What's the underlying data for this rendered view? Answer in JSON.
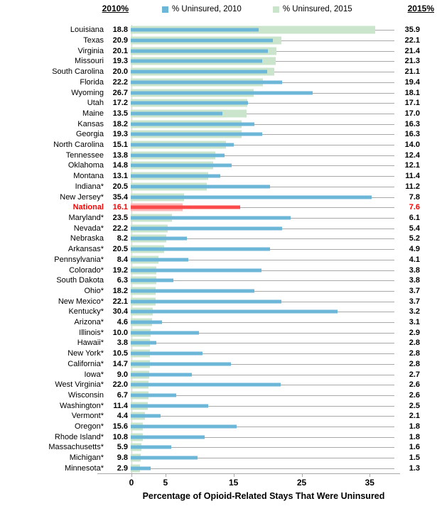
{
  "chart_data": {
    "type": "bar",
    "orientation": "horizontal",
    "left_header": "2010%",
    "right_header": "2015%",
    "xlabel": "Percentage of Opioid-Related Stays That Were Uninsured",
    "x_ticks": [
      "0",
      "5",
      "15",
      "25",
      "35"
    ],
    "xlim": [
      0,
      38.7
    ],
    "grid": "leader-lines-per-row",
    "legend_position": "top-center",
    "legend": [
      {
        "label": "% Uninsured, 2010",
        "color": "#6CB6D8"
      },
      {
        "label": "% Uninsured, 2015",
        "color": "#CBE5CD"
      }
    ],
    "national_colors": {
      "bar_2010": "#FB4A4A",
      "bar_2015": "#FBB9B9",
      "text": "#FF0000"
    },
    "rows": [
      {
        "state": "Louisiana",
        "v2010": "18.8",
        "v2015": "35.9",
        "highlight": false
      },
      {
        "state": "Texas",
        "v2010": "20.9",
        "v2015": "22.1",
        "highlight": false
      },
      {
        "state": "Virginia",
        "v2010": "20.1",
        "v2015": "21.4",
        "highlight": false
      },
      {
        "state": "Missouri",
        "v2010": "19.3",
        "v2015": "21.3",
        "highlight": false
      },
      {
        "state": "South Carolina",
        "v2010": "20.0",
        "v2015": "21.1",
        "highlight": false
      },
      {
        "state": "Florida",
        "v2010": "22.2",
        "v2015": "19.4",
        "highlight": false
      },
      {
        "state": "Wyoming",
        "v2010": "26.7",
        "v2015": "18.1",
        "highlight": false
      },
      {
        "state": "Utah",
        "v2010": "17.2",
        "v2015": "17.1",
        "highlight": false
      },
      {
        "state": "Maine",
        "v2010": "13.5",
        "v2015": "17.0",
        "highlight": false
      },
      {
        "state": "Kansas",
        "v2010": "18.2",
        "v2015": "16.3",
        "highlight": false
      },
      {
        "state": "Georgia",
        "v2010": "19.3",
        "v2015": "16.3",
        "highlight": false
      },
      {
        "state": "North Carolina",
        "v2010": "15.1",
        "v2015": "14.0",
        "highlight": false
      },
      {
        "state": "Tennessee",
        "v2010": "13.8",
        "v2015": "12.4",
        "highlight": false
      },
      {
        "state": "Oklahoma",
        "v2010": "14.8",
        "v2015": "12.1",
        "highlight": false
      },
      {
        "state": "Montana",
        "v2010": "13.1",
        "v2015": "11.4",
        "highlight": false
      },
      {
        "state": "Indiana*",
        "v2010": "20.5",
        "v2015": "11.2",
        "highlight": false
      },
      {
        "state": "New Jersey*",
        "v2010": "35.4",
        "v2015": "7.8",
        "highlight": false
      },
      {
        "state": "National",
        "v2010": "16.1",
        "v2015": "7.6",
        "highlight": true
      },
      {
        "state": "Maryland*",
        "v2010": "23.5",
        "v2015": "6.1",
        "highlight": false
      },
      {
        "state": "Nevada*",
        "v2010": "22.2",
        "v2015": "5.4",
        "highlight": false
      },
      {
        "state": "Nebraska",
        "v2010": "8.2",
        "v2015": "5.2",
        "highlight": false
      },
      {
        "state": "Arkansas*",
        "v2010": "20.5",
        "v2015": "4.9",
        "highlight": false
      },
      {
        "state": "Pennsylvania*",
        "v2010": "8.4",
        "v2015": "4.1",
        "highlight": false
      },
      {
        "state": "Colorado*",
        "v2010": "19.2",
        "v2015": "3.8",
        "highlight": false
      },
      {
        "state": "South Dakota",
        "v2010": "6.3",
        "v2015": "3.8",
        "highlight": false
      },
      {
        "state": "Ohio*",
        "v2010": "18.2",
        "v2015": "3.7",
        "highlight": false
      },
      {
        "state": "New Mexico*",
        "v2010": "22.1",
        "v2015": "3.7",
        "highlight": false
      },
      {
        "state": "Kentucky*",
        "v2010": "30.4",
        "v2015": "3.2",
        "highlight": false
      },
      {
        "state": "Arizona*",
        "v2010": "4.6",
        "v2015": "3.1",
        "highlight": false
      },
      {
        "state": "Illinois*",
        "v2010": "10.0",
        "v2015": "2.9",
        "highlight": false
      },
      {
        "state": "Hawaii*",
        "v2010": "3.8",
        "v2015": "2.8",
        "highlight": false
      },
      {
        "state": "New York*",
        "v2010": "10.5",
        "v2015": "2.8",
        "highlight": false
      },
      {
        "state": "California*",
        "v2010": "14.7",
        "v2015": "2.8",
        "highlight": false
      },
      {
        "state": "Iowa*",
        "v2010": "9.0",
        "v2015": "2.7",
        "highlight": false
      },
      {
        "state": "West Virginia*",
        "v2010": "22.0",
        "v2015": "2.6",
        "highlight": false
      },
      {
        "state": "Wisconsin",
        "v2010": "6.7",
        "v2015": "2.6",
        "highlight": false
      },
      {
        "state": "Washington*",
        "v2010": "11.4",
        "v2015": "2.5",
        "highlight": false
      },
      {
        "state": "Vermont*",
        "v2010": "4.4",
        "v2015": "2.1",
        "highlight": false
      },
      {
        "state": "Oregon*",
        "v2010": "15.6",
        "v2015": "1.8",
        "highlight": false
      },
      {
        "state": "Rhode Island*",
        "v2010": "10.8",
        "v2015": "1.8",
        "highlight": false
      },
      {
        "state": "Massachusetts*",
        "v2010": "5.9",
        "v2015": "1.6",
        "highlight": false
      },
      {
        "state": "Michigan*",
        "v2010": "9.8",
        "v2015": "1.5",
        "highlight": false
      },
      {
        "state": "Minnesota*",
        "v2010": "2.9",
        "v2015": "1.3",
        "highlight": false
      }
    ]
  }
}
